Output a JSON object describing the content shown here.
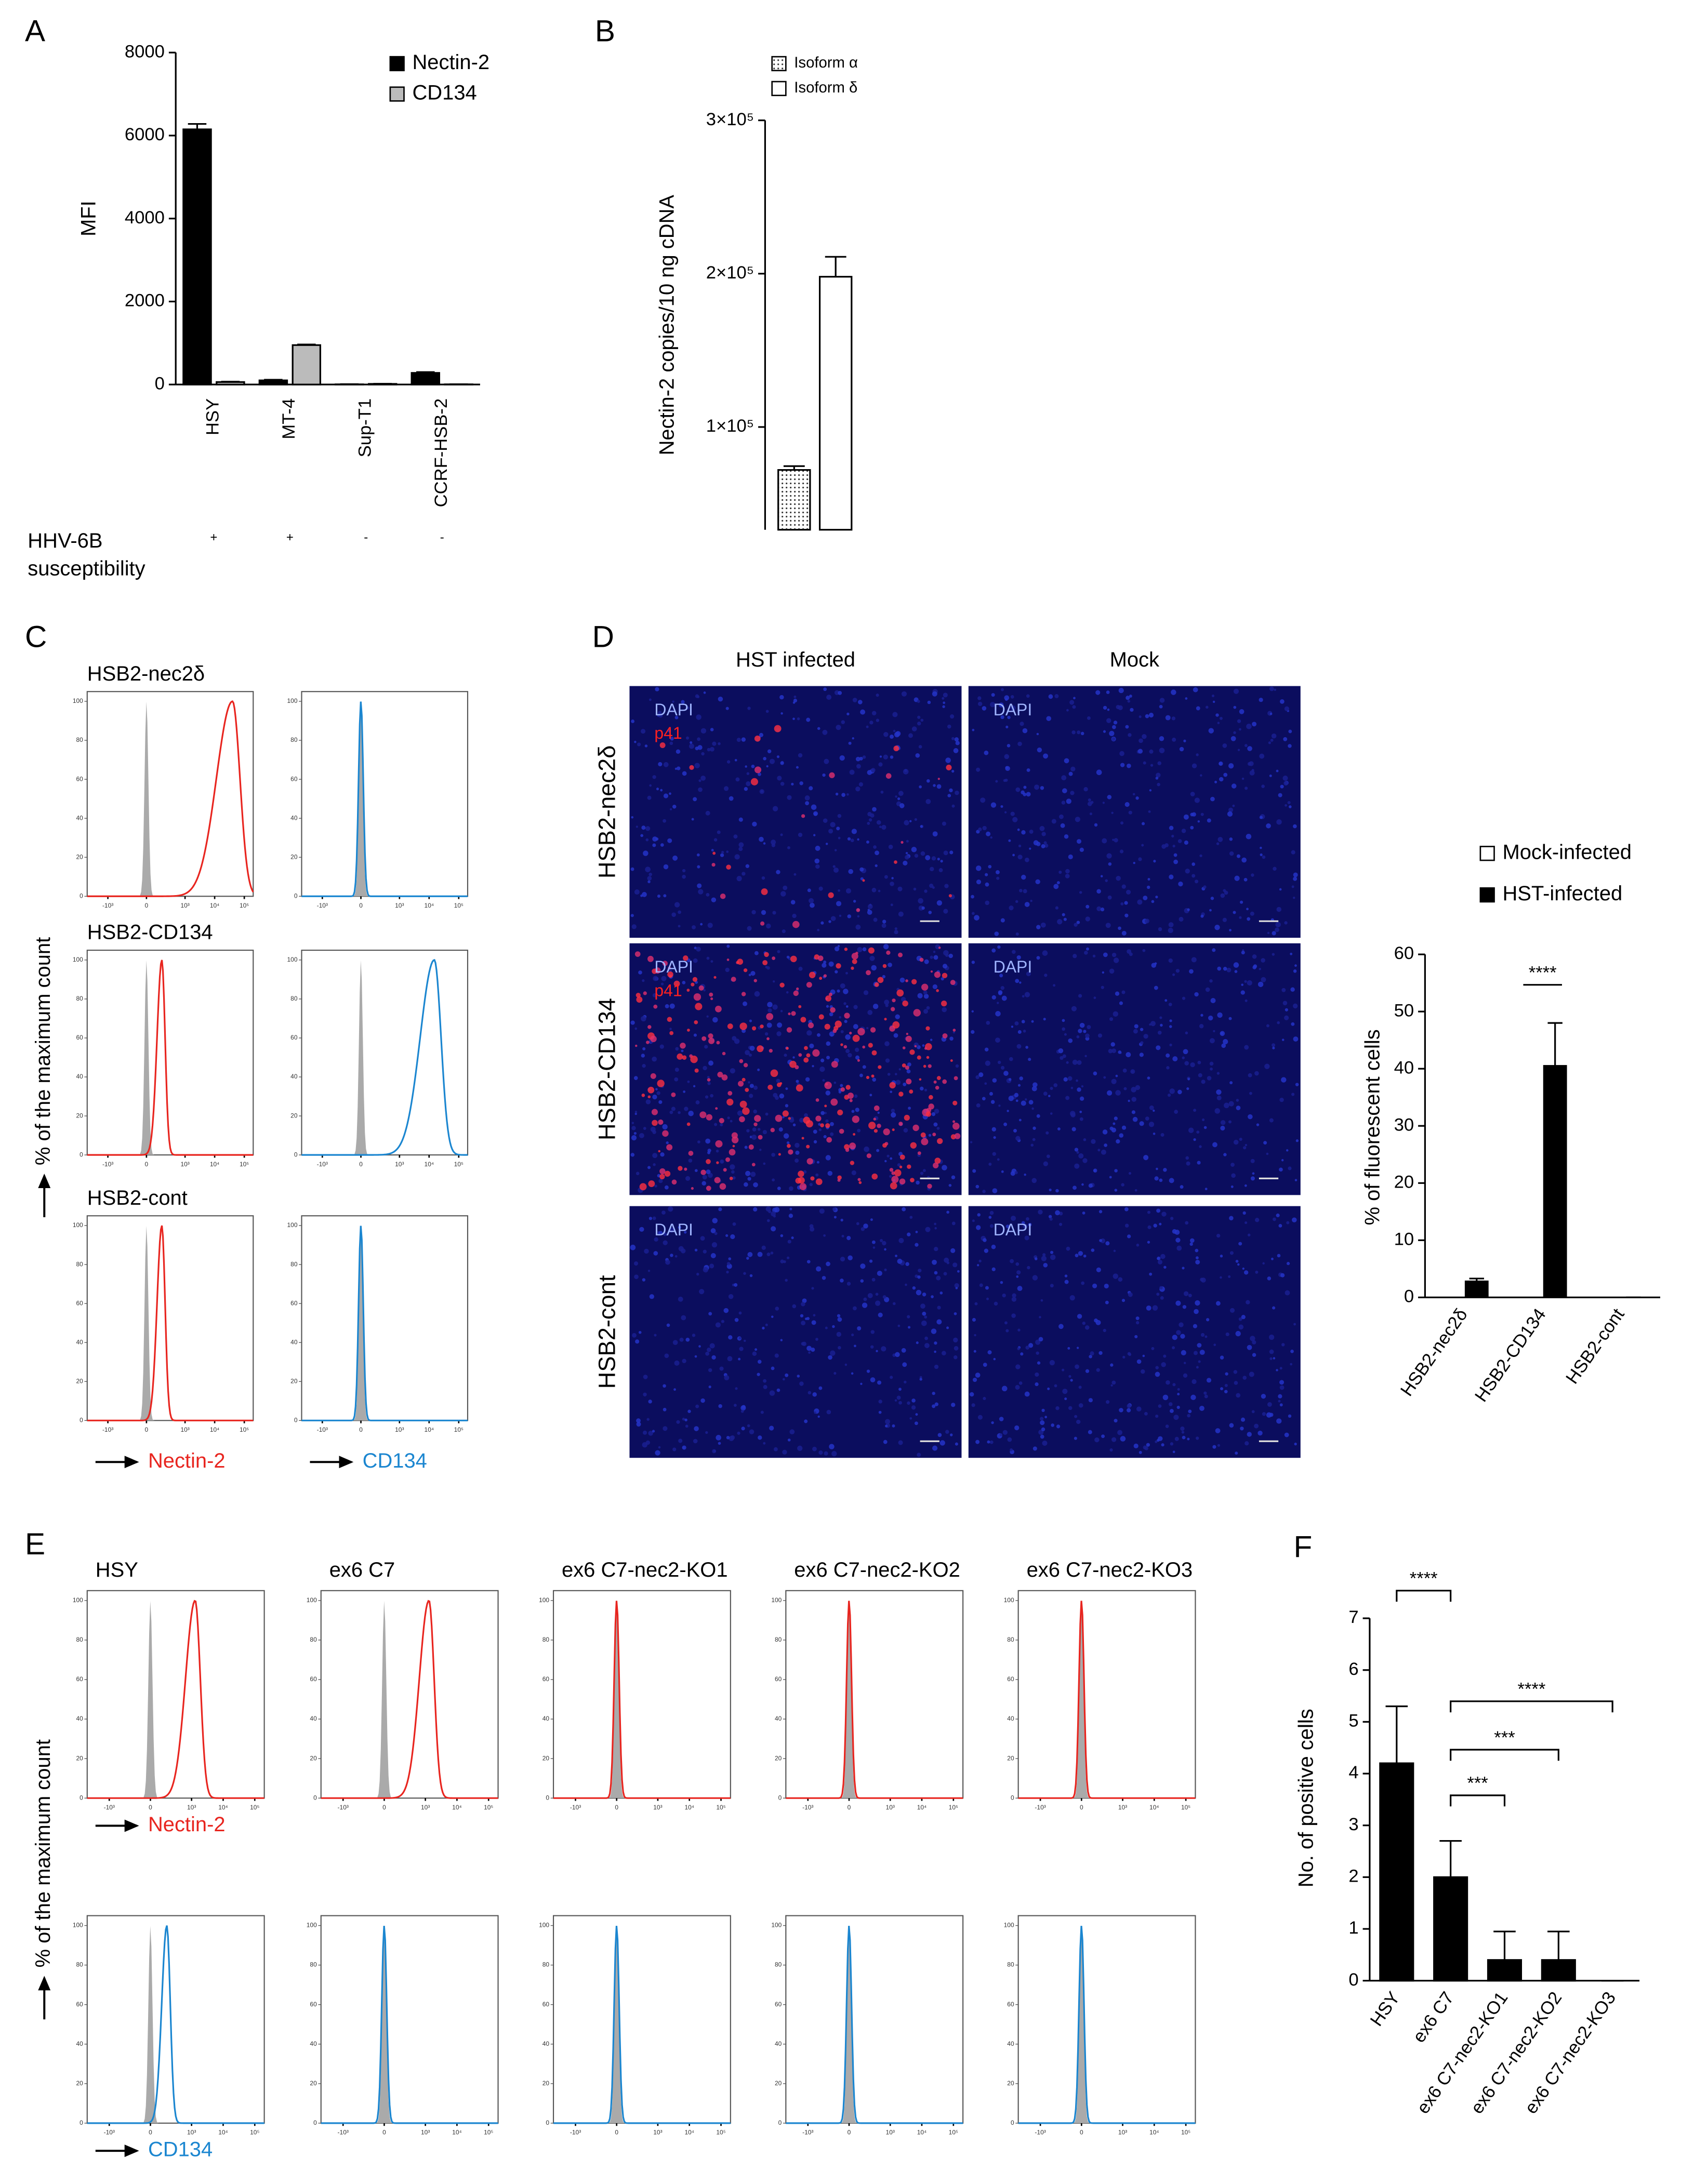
{
  "chart_data": [
    {
      "type": "bar",
      "panel": "A",
      "ylabel": "MFI",
      "categories": [
        "HSY",
        "MT-4",
        "Sup-T1",
        "CCRF-HSB-2"
      ],
      "series": [
        {
          "name": "Nectin-2",
          "color": "#000000",
          "values": [
            6150,
            100,
            5,
            280
          ],
          "errors": [
            130,
            15,
            3,
            20
          ]
        },
        {
          "name": "CD134",
          "color": "#bbbbbb",
          "values": [
            60,
            950,
            15,
            5
          ],
          "errors": [
            10,
            15,
            3,
            2
          ]
        }
      ],
      "ylim": [
        0,
        8000
      ],
      "yticks": [
        0,
        2000,
        4000,
        6000,
        8000
      ],
      "footer_label": [
        "HHV-6B",
        "susceptibility"
      ],
      "footer_marks": [
        "+",
        "+",
        "-",
        "-"
      ]
    },
    {
      "type": "bar",
      "panel": "B",
      "ylabel": "Nectin-2 copies/10 ng cDNA",
      "categories": [
        null
      ],
      "series": [
        {
          "name": "Isoform α",
          "color": "#ffffff",
          "fill_pattern": "dots",
          "values": [
            72000
          ],
          "errors": [
            2500
          ]
        },
        {
          "name": "Isoform δ",
          "color": "#ffffff",
          "values": [
            198000
          ],
          "errors": [
            13000
          ]
        }
      ],
      "ylim": [
        33000,
        300000
      ],
      "yticks": [
        {
          "value": 100000,
          "label": "1×10⁵"
        },
        {
          "value": 200000,
          "label": "2×10⁵"
        },
        {
          "value": 300000,
          "label": "3×10⁵"
        }
      ]
    },
    {
      "type": "flow",
      "panel": "C",
      "ylabel": "% of the maximum count",
      "samples": [
        "HSB2-nec2δ",
        "HSB2-CD134",
        "HSB2-cont"
      ],
      "channels": [
        {
          "name": "Nectin-2",
          "color": "#e8251f"
        },
        {
          "name": "CD134",
          "color": "#1b86d0"
        }
      ],
      "peaks": [
        [
          40000,
          0
        ],
        [
          150,
          15000
        ],
        [
          150,
          0
        ]
      ],
      "control_peak": 0,
      "control_color": "#aaaaaa",
      "xlim": [
        -5000,
        200000
      ],
      "xticks": [
        {
          "value": -1000,
          "label": "-10³"
        },
        0,
        {
          "value": 1000,
          "label": "10³"
        },
        {
          "value": 10000,
          "label": "10⁴"
        },
        {
          "value": 100000,
          "label": "10⁵"
        }
      ],
      "ylim": [
        0,
        105
      ],
      "yticks": [
        0,
        20,
        40,
        60,
        80,
        100
      ]
    },
    {
      "type": "image_grid",
      "panel": "D",
      "columns": [
        "HST infected",
        "Mock"
      ],
      "rows": [
        "HSB2-nec2δ",
        "HSB2-CD134",
        "HSB2-cont"
      ],
      "cells": [
        [
          [
            "DAPI",
            "p41"
          ],
          [
            "DAPI"
          ]
        ],
        [
          [
            "DAPI",
            "p41"
          ],
          [
            "DAPI"
          ]
        ],
        [
          [
            "DAPI"
          ],
          [
            "DAPI"
          ]
        ]
      ]
    },
    {
      "type": "bar",
      "ylabel": "% of fluorescent cells",
      "categories": [
        "HSB2-nec2δ",
        "HSB2-CD134",
        "HSB2-cont"
      ],
      "series": [
        {
          "name": "Mock-infected",
          "color": "#ffffff",
          "values": [
            0,
            0,
            0
          ]
        },
        {
          "name": "HST-infected",
          "color": "#000000",
          "values": [
            2.8,
            40.5,
            0
          ],
          "errors": [
            0.5,
            7.5,
            0
          ]
        }
      ],
      "ylim": [
        0,
        60
      ],
      "yticks": [
        0,
        10,
        20,
        30,
        40,
        50,
        60
      ],
      "annotations": [
        "****"
      ]
    },
    {
      "type": "flow",
      "panel": "E",
      "ylabel": "% of the maximum count",
      "samples": [
        "HSY",
        "ex6 C7",
        "ex6 C7-nec2-KO1",
        "ex6 C7-nec2-KO2",
        "ex6 C7-nec2-KO3"
      ],
      "channels": [
        {
          "name": "Nectin-2",
          "color": "#e8251f"
        },
        {
          "name": "CD134",
          "color": "#1b86d0"
        }
      ],
      "peaks": [
        [
          1300,
          150
        ],
        [
          1300,
          0
        ],
        [
          0,
          0
        ],
        [
          0,
          0
        ],
        [
          0,
          0
        ]
      ],
      "control_peak": 0,
      "control_color": "#aaaaaa",
      "xlim": [
        -5000,
        200000
      ],
      "xticks": [
        {
          "value": -1000,
          "label": "-10³"
        },
        0,
        {
          "value": 1000,
          "label": "10³"
        },
        {
          "value": 10000,
          "label": "10⁴"
        },
        {
          "value": 100000,
          "label": "10⁵"
        }
      ],
      "ylim": [
        0,
        105
      ],
      "yticks": [
        0,
        20,
        40,
        60,
        80,
        100
      ]
    },
    {
      "type": "bar",
      "panel": "F",
      "ylabel": "No. of positive cells",
      "categories": [
        "HSY",
        "ex6 C7",
        "ex6 C7-nec2-KO1",
        "ex6 C7-nec2-KO2",
        "ex6 C7-nec2-KO3"
      ],
      "series": [
        {
          "color": "#000000",
          "values": [
            4.2,
            2.0,
            0.4,
            0.4,
            0
          ],
          "errors": [
            1.1,
            0.7,
            0.55,
            0.55,
            0
          ]
        }
      ],
      "ylim": [
        0,
        7
      ],
      "yticks": [
        0,
        1,
        2,
        3,
        4,
        5,
        6,
        7
      ],
      "annotations": [
        "****",
        "***",
        "***",
        "****"
      ]
    }
  ]
}
